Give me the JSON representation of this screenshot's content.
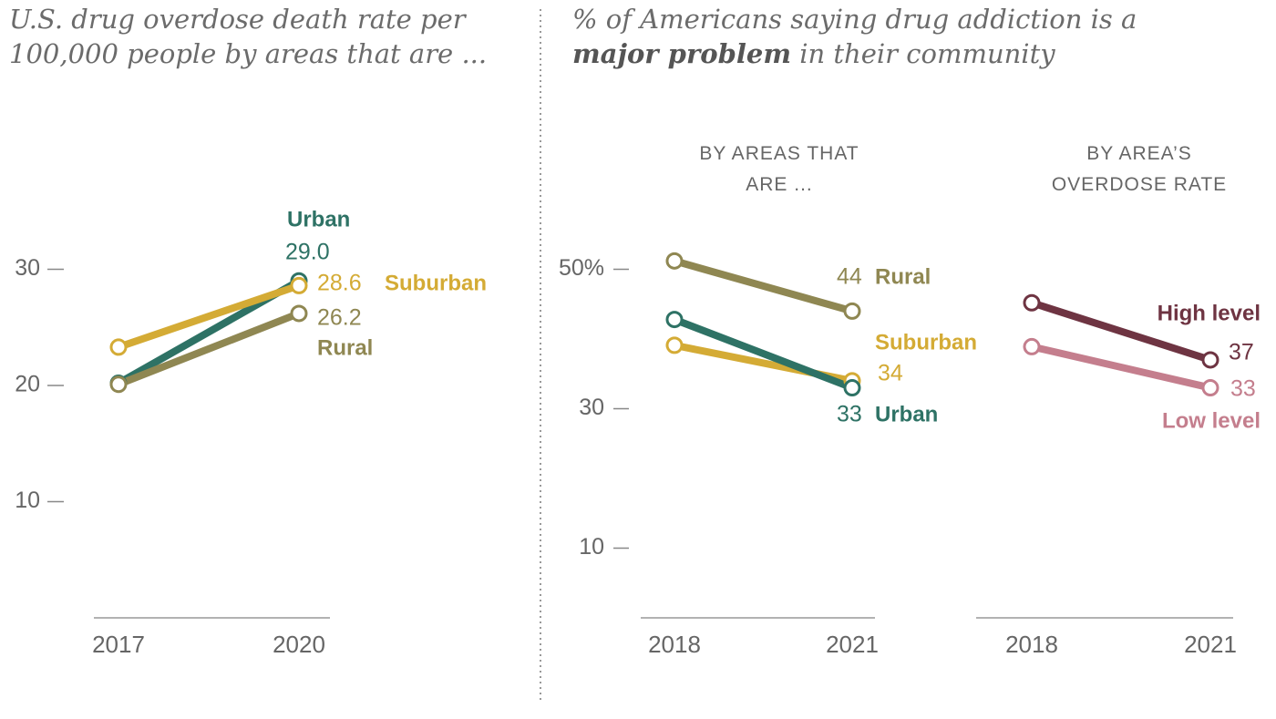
{
  "chart_data": [
    {
      "type": "line",
      "title": "U.S. drug overdose death rate per 100,000 people by areas that are ...",
      "categories": [
        "2017",
        "2020"
      ],
      "ylim": [
        0,
        40
      ],
      "yticks": [
        10,
        20,
        30
      ],
      "series": [
        {
          "name": "Urban",
          "color": "#2e7265",
          "values": [
            20.2,
            29.0
          ],
          "value_labels": [
            null,
            "29.0"
          ]
        },
        {
          "name": "Suburban",
          "color": "#d4ab35",
          "values": [
            23.3,
            28.6
          ]
        },
        {
          "name": "Rural",
          "color": "#8f8752",
          "values": [
            20.1,
            26.2
          ]
        }
      ]
    },
    {
      "type": "line",
      "title": [
        "% of Americans saying drug addiction is a ",
        "major problem",
        " in their community"
      ],
      "subtitle": "BY AREAS THAT ARE ...",
      "categories": [
        "2018",
        "2021"
      ],
      "ylim": [
        0,
        60
      ],
      "yticks": [
        10,
        30,
        {
          "value": 50,
          "label": "50%"
        }
      ],
      "series": [
        {
          "name": "Rural",
          "color": "#8f8752",
          "values": [
            51.2,
            44
          ]
        },
        {
          "name": "Suburban",
          "color": "#d4ab35",
          "values": [
            39.1,
            34
          ]
        },
        {
          "name": "Urban",
          "color": "#2e7265",
          "values": [
            42.8,
            33
          ]
        }
      ]
    },
    {
      "type": "line",
      "subtitle": "BY AREA’S OVERDOSE RATE",
      "categories": [
        "2018",
        "2021"
      ],
      "ylim": [
        0,
        60
      ],
      "series": [
        {
          "name": "High level",
          "color": "#6e3442",
          "values": [
            45.2,
            37
          ]
        },
        {
          "name": "Low level",
          "color": "#c47e8d",
          "values": [
            38.9,
            33
          ]
        }
      ]
    }
  ]
}
